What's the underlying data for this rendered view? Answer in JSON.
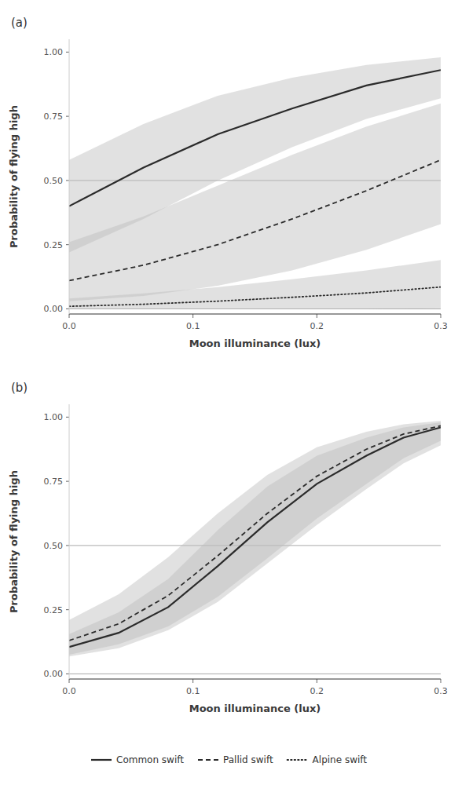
{
  "chart_data": [
    {
      "type": "line",
      "title": "(a)",
      "xlabel": "Moon illuminance (lux)",
      "ylabel": "Probability of flying high",
      "x": [
        0.0,
        0.06,
        0.12,
        0.18,
        0.24,
        0.3
      ],
      "xlim": [
        0.0,
        0.3
      ],
      "xticks": [
        {
          "value": 0.0,
          "label": "0.0"
        },
        {
          "value": 0.1,
          "label": "0.1"
        },
        {
          "value": 0.2,
          "label": "0.2"
        },
        {
          "value": 0.3,
          "label": "0.3"
        }
      ],
      "ylim": [
        -0.02,
        1.05
      ],
      "yticks": [
        {
          "value": 0.0,
          "label": "0.00"
        },
        {
          "value": 0.25,
          "label": "0.25"
        },
        {
          "value": 0.5,
          "label": "0.50"
        },
        {
          "value": 0.75,
          "label": "0.75"
        },
        {
          "value": 1.0,
          "label": "1.00"
        }
      ],
      "hlines": [
        0.5,
        0.0
      ],
      "grid": false,
      "legend": "bottom",
      "series": [
        {
          "name": "Common swift",
          "color": "#2b2b2b",
          "line_style": "solid",
          "values": [
            0.4,
            0.55,
            0.68,
            0.78,
            0.87,
            0.93
          ],
          "ci_lo": [
            0.22,
            0.35,
            0.5,
            0.63,
            0.74,
            0.82
          ],
          "ci_hi": [
            0.58,
            0.72,
            0.83,
            0.9,
            0.95,
            0.98
          ]
        },
        {
          "name": "Pallid swift",
          "color": "#2b2b2b",
          "line_style": "dashed",
          "values": [
            0.11,
            0.17,
            0.25,
            0.35,
            0.46,
            0.58
          ],
          "ci_lo": [
            0.03,
            0.05,
            0.09,
            0.15,
            0.23,
            0.33
          ],
          "ci_hi": [
            0.26,
            0.36,
            0.48,
            0.6,
            0.71,
            0.8
          ]
        },
        {
          "name": "Alpine swift",
          "color": "#2b2b2b",
          "line_style": "dotted",
          "values": [
            0.01,
            0.018,
            0.03,
            0.045,
            0.062,
            0.085
          ],
          "ci_lo": [
            0.0,
            0.0,
            0.0,
            0.0,
            0.0,
            0.002
          ],
          "ci_hi": [
            0.04,
            0.06,
            0.085,
            0.115,
            0.15,
            0.19
          ]
        }
      ]
    },
    {
      "type": "line",
      "title": "(b)",
      "xlabel": "Moon illuminance (lux)",
      "ylabel": "Probability of flying high",
      "x": [
        0.0,
        0.04,
        0.08,
        0.12,
        0.16,
        0.2,
        0.24,
        0.27,
        0.3
      ],
      "xlim": [
        0.0,
        0.3
      ],
      "xticks": [
        {
          "value": 0.0,
          "label": "0.0"
        },
        {
          "value": 0.1,
          "label": "0.1"
        },
        {
          "value": 0.2,
          "label": "0.2"
        },
        {
          "value": 0.3,
          "label": "0.3"
        }
      ],
      "ylim": [
        -0.02,
        1.05
      ],
      "yticks": [
        {
          "value": 0.0,
          "label": "0.00"
        },
        {
          "value": 0.25,
          "label": "0.25"
        },
        {
          "value": 0.5,
          "label": "0.50"
        },
        {
          "value": 0.75,
          "label": "0.75"
        },
        {
          "value": 1.0,
          "label": "1.00"
        }
      ],
      "hlines": [
        0.5,
        0.0
      ],
      "grid": false,
      "series": [
        {
          "name": "Common swift",
          "color": "#2b2b2b",
          "line_style": "solid",
          "values": [
            0.105,
            0.16,
            0.26,
            0.42,
            0.59,
            0.74,
            0.85,
            0.92,
            0.96
          ],
          "ci_lo": [
            0.068,
            0.1,
            0.17,
            0.28,
            0.43,
            0.58,
            0.72,
            0.82,
            0.89
          ],
          "ci_hi": [
            0.155,
            0.24,
            0.37,
            0.56,
            0.73,
            0.85,
            0.92,
            0.96,
            0.98
          ]
        },
        {
          "name": "Pallid swift",
          "color": "#2b2b2b",
          "line_style": "dashed",
          "values": [
            0.13,
            0.195,
            0.305,
            0.46,
            0.625,
            0.77,
            0.875,
            0.934,
            0.966
          ],
          "ci_lo": [
            0.075,
            0.115,
            0.185,
            0.3,
            0.45,
            0.605,
            0.74,
            0.84,
            0.908
          ],
          "ci_hi": [
            0.21,
            0.31,
            0.455,
            0.625,
            0.775,
            0.883,
            0.943,
            0.972,
            0.986
          ]
        }
      ]
    }
  ]
}
